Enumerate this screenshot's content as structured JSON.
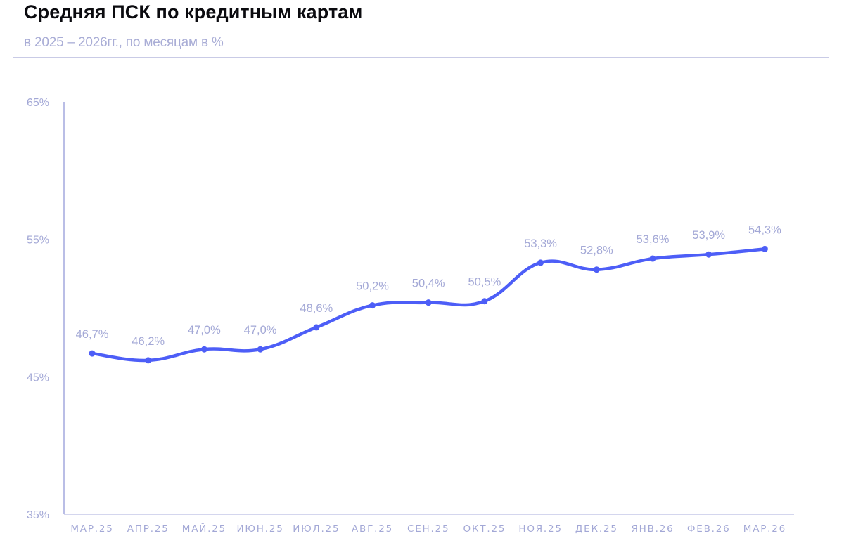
{
  "header": {
    "title": "Средняя ПСК по кредитным картам",
    "subtitle": "в 2025 – 2026гг., по месяцам в %"
  },
  "colors": {
    "line": "#4d5ef7",
    "axis": "#a3a8dd",
    "label": "#a3a8d6",
    "divider": "#c9cbe6"
  },
  "chart_data": {
    "type": "line",
    "title": "Средняя ПСК по кредитным картам",
    "subtitle": "в 2025 – 2026гг., по месяцам в %",
    "xlabel": "",
    "ylabel": "",
    "ylim": [
      35,
      65
    ],
    "yticks": [
      "35%",
      "45%",
      "55%",
      "65%"
    ],
    "grid": false,
    "legend": null,
    "categories": [
      "МАР.25",
      "АПР.25",
      "МАЙ.25",
      "ИЮН.25",
      "ИЮЛ.25",
      "АВГ.25",
      "СЕН.25",
      "ОКТ.25",
      "НОЯ.25",
      "ДЕК.25",
      "ЯНВ.26",
      "ФЕВ.26",
      "МАР.26"
    ],
    "series": [
      {
        "name": "Средняя ПСК",
        "values": [
          46.7,
          46.2,
          47.0,
          47.0,
          48.6,
          50.2,
          50.4,
          50.5,
          53.3,
          52.8,
          53.6,
          53.9,
          54.3
        ],
        "labels": [
          "46,7%",
          "46,2%",
          "47,0%",
          "47,0%",
          "48,6%",
          "50,2%",
          "50,4%",
          "50,5%",
          "53,3%",
          "52,8%",
          "53,6%",
          "53,9%",
          "54,3%"
        ]
      }
    ]
  }
}
